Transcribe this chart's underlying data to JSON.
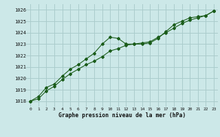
{
  "title": "Graphe pression niveau de la mer (hPa)",
  "bg_color": "#cce8e8",
  "grid_color": "#aacccc",
  "line_color": "#1a5c1a",
  "x_labels": [
    "0",
    "1",
    "2",
    "3",
    "4",
    "5",
    "6",
    "7",
    "8",
    "9",
    "10",
    "11",
    "12",
    "13",
    "14",
    "15",
    "16",
    "17",
    "18",
    "19",
    "20",
    "21",
    "22",
    "23"
  ],
  "ylim": [
    1017.5,
    1026.5
  ],
  "yticks": [
    1018,
    1019,
    1020,
    1021,
    1022,
    1023,
    1024,
    1025,
    1026
  ],
  "series1": [
    1018.0,
    1018.4,
    1019.2,
    1019.5,
    1020.2,
    1020.8,
    1021.2,
    1021.7,
    1022.2,
    1023.0,
    1023.6,
    1023.5,
    1023.0,
    1023.0,
    1023.0,
    1023.1,
    1023.5,
    1024.1,
    1024.7,
    1025.0,
    1025.3,
    1025.4,
    1025.5,
    1025.9
  ],
  "series2": [
    1018.0,
    1018.2,
    1018.9,
    1019.3,
    1019.9,
    1020.4,
    1020.8,
    1021.2,
    1021.5,
    1021.9,
    1022.4,
    1022.6,
    1022.9,
    1023.0,
    1023.1,
    1023.2,
    1023.6,
    1024.0,
    1024.4,
    1024.8,
    1025.1,
    1025.3,
    1025.5,
    1025.9
  ],
  "figwidth": 3.2,
  "figheight": 2.0,
  "dpi": 100
}
